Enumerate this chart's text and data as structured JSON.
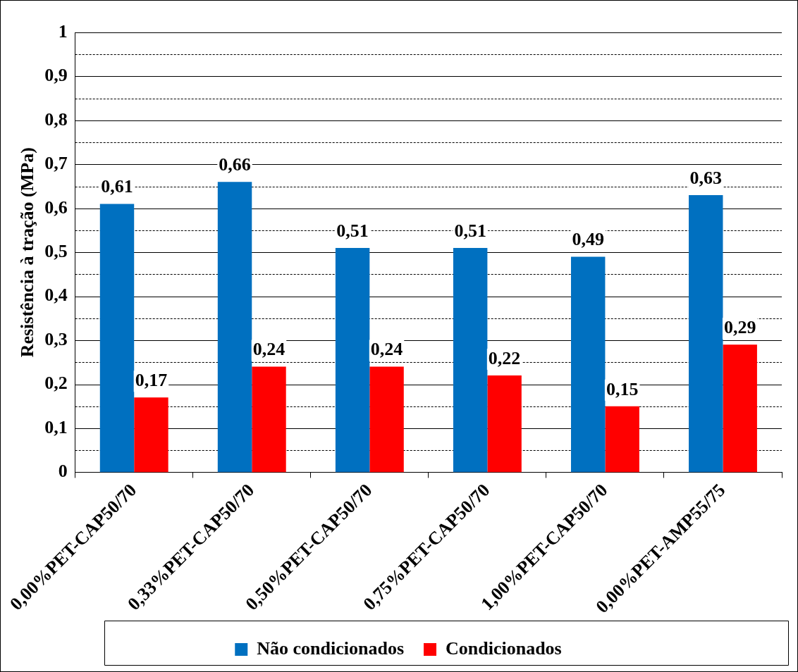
{
  "chart_data": {
    "type": "bar",
    "ylabel": "Resistência à tração (MPa)",
    "categories": [
      "0,00%PET-CAP50/70",
      "0,33%PET-CAP50/70",
      "0,50%PET-CAP50/70",
      "0,75%PET-CAP50/70",
      "1,00%PET-CAP50/70",
      "0,00%PET-AMP55/75"
    ],
    "series": [
      {
        "name": "Não condicionados",
        "color": "#0070c0",
        "values": [
          0.61,
          0.66,
          0.51,
          0.51,
          0.49,
          0.63
        ]
      },
      {
        "name": "Condicionados",
        "color": "#ff0000",
        "values": [
          0.17,
          0.24,
          0.24,
          0.22,
          0.15,
          0.29
        ]
      }
    ],
    "value_labels": [
      [
        "0,61",
        "0,66",
        "0,51",
        "0,51",
        "0,49",
        "0,63"
      ],
      [
        "0,17",
        "0,24",
        "0,24",
        "0,22",
        "0,15",
        "0,29"
      ]
    ],
    "ylim": [
      0,
      1
    ],
    "yticks": [
      {
        "value": 0,
        "label": "0"
      },
      {
        "value": 0.05,
        "label": null
      },
      {
        "value": 0.1,
        "label": "0,1"
      },
      {
        "value": 0.15,
        "label": null
      },
      {
        "value": 0.2,
        "label": "0,2"
      },
      {
        "value": 0.25,
        "label": null
      },
      {
        "value": 0.3,
        "label": "0,3"
      },
      {
        "value": 0.35,
        "label": null
      },
      {
        "value": 0.4,
        "label": "0,4"
      },
      {
        "value": 0.45,
        "label": null
      },
      {
        "value": 0.5,
        "label": "0,5"
      },
      {
        "value": 0.55,
        "label": null
      },
      {
        "value": 0.6,
        "label": "0,6"
      },
      {
        "value": 0.65,
        "label": null
      },
      {
        "value": 0.7,
        "label": "0,7"
      },
      {
        "value": 0.75,
        "label": null
      },
      {
        "value": 0.8,
        "label": "0,8"
      },
      {
        "value": 0.85,
        "label": null
      },
      {
        "value": 0.9,
        "label": "0,9"
      },
      {
        "value": 0.95,
        "label": null
      },
      {
        "value": 1,
        "label": "1"
      }
    ],
    "grid": "y",
    "legend": "bottom"
  }
}
